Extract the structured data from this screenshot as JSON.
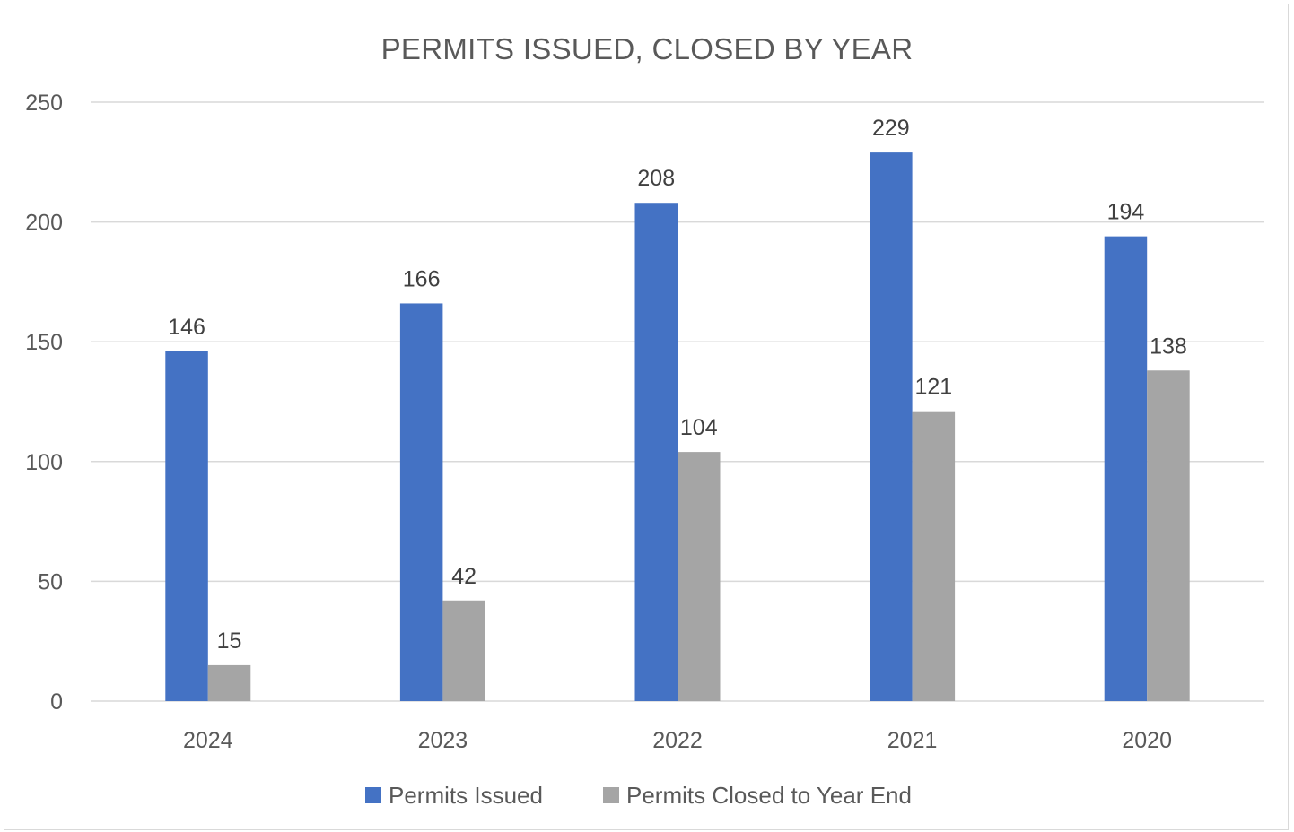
{
  "chart_data": {
    "type": "bar",
    "title": "PERMITS ISSUED, CLOSED BY YEAR",
    "xlabel": "",
    "ylabel": "",
    "categories": [
      "2024",
      "2023",
      "2022",
      "2021",
      "2020"
    ],
    "ylim": [
      0,
      250
    ],
    "yticks": [
      0,
      50,
      100,
      150,
      200,
      250
    ],
    "grid": true,
    "legend_position": "bottom",
    "data_labels": true,
    "series": [
      {
        "name": "Permits Issued",
        "color": "#4472c4",
        "values": [
          146,
          166,
          208,
          229,
          194
        ]
      },
      {
        "name": "Permits Closed to Year End",
        "color": "#a5a5a5",
        "values": [
          15,
          42,
          104,
          121,
          138
        ]
      }
    ]
  }
}
